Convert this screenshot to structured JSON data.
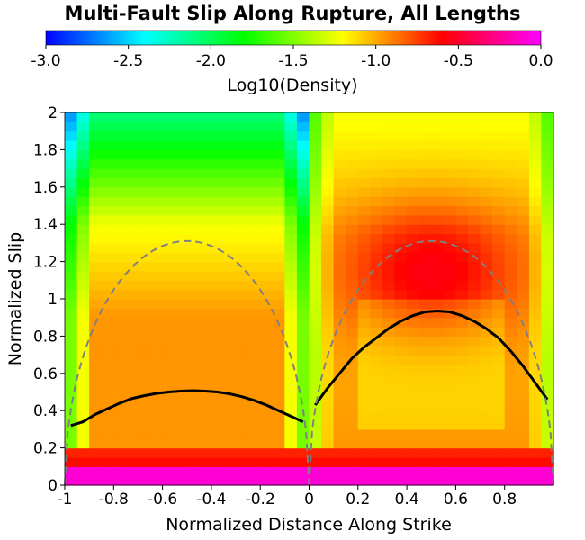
{
  "chart_data": {
    "type": "heatmap",
    "title": "Multi-Fault Slip Along Rupture, All Lengths",
    "colorbar": {
      "label": "Log10(Density)",
      "range": [
        -3.0,
        0.0
      ],
      "ticks": [
        "-3.0",
        "-2.5",
        "-2.0",
        "-1.5",
        "-1.0",
        "-0.5",
        "0.0"
      ],
      "colormap": [
        "#0000ff",
        "#00ffff",
        "#00ff00",
        "#ffff00",
        "#ff0000",
        "#ff00ff"
      ]
    },
    "xlabel": "Normalized Distance Along Strike",
    "ylabel": "Normalized Slip",
    "xlim": [
      -1,
      1
    ],
    "ylim": [
      0,
      2
    ],
    "x_ticks": [
      "-1",
      "-0.8",
      "-0.6",
      "-0.4",
      "-0.2",
      "0",
      "0.2",
      "0.4",
      "0.6",
      "0.8"
    ],
    "y_ticks": [
      "0",
      "0.2",
      "0.4",
      "0.6",
      "0.8",
      "1",
      "1.2",
      "1.4",
      "1.6",
      "1.8",
      "2"
    ],
    "grid": {
      "nx": 40,
      "ny": 40
    },
    "series": [
      {
        "style": "solid",
        "color": "#000000",
        "x": [
          -0.975,
          -0.925,
          -0.875,
          -0.825,
          -0.775,
          -0.725,
          -0.675,
          -0.625,
          -0.575,
          -0.525,
          -0.475,
          -0.425,
          -0.375,
          -0.325,
          -0.275,
          -0.225,
          -0.175,
          -0.125,
          -0.075,
          -0.025
        ],
        "y": [
          0.32,
          0.34,
          0.38,
          0.41,
          0.44,
          0.465,
          0.48,
          0.492,
          0.5,
          0.505,
          0.507,
          0.505,
          0.5,
          0.49,
          0.475,
          0.455,
          0.43,
          0.4,
          0.37,
          0.34
        ]
      },
      {
        "style": "solid",
        "color": "#000000",
        "x": [
          0.025,
          0.075,
          0.125,
          0.175,
          0.225,
          0.275,
          0.325,
          0.375,
          0.425,
          0.475,
          0.525,
          0.575,
          0.625,
          0.675,
          0.725,
          0.775,
          0.825,
          0.875,
          0.925,
          0.975
        ],
        "y": [
          0.43,
          0.52,
          0.6,
          0.68,
          0.74,
          0.79,
          0.84,
          0.88,
          0.91,
          0.93,
          0.935,
          0.93,
          0.91,
          0.88,
          0.84,
          0.79,
          0.72,
          0.64,
          0.55,
          0.46
        ]
      },
      {
        "style": "dashed",
        "color": "#808080",
        "shape": "ellipse-arc",
        "x_range": [
          -1,
          0
        ],
        "peak": 1.31
      },
      {
        "style": "dashed",
        "color": "#808080",
        "shape": "ellipse-arc",
        "x_range": [
          0,
          1
        ],
        "peak": 1.31
      }
    ]
  }
}
